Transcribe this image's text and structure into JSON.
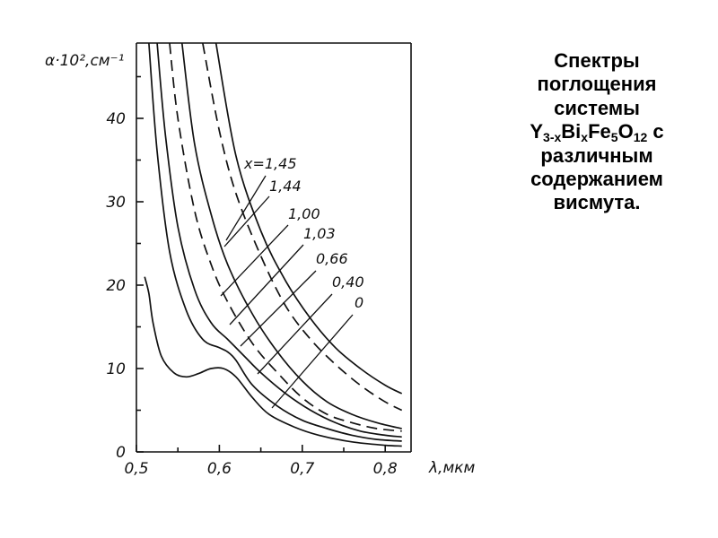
{
  "caption": {
    "line1": "Спектры",
    "line2": "поглощения",
    "line3": "системы",
    "formula": {
      "y": "Y",
      "y_sub": "3-x",
      "bi": "Bi",
      "bi_sub": "x",
      "fe": "Fe",
      "fe_sub": "5",
      "o": "O",
      "o_sub": "12",
      "tail": " с"
    },
    "line5": "различным",
    "line6": "содержанием",
    "line7": "висмута."
  },
  "chart_data": {
    "type": "line",
    "xlabel": "λ,мкм",
    "ylabel": "α·10²,см⁻¹",
    "xlim": [
      0.5,
      0.82
    ],
    "ylim": [
      0,
      49
    ],
    "x_ticks": [
      0.5,
      0.6,
      0.7,
      0.8
    ],
    "x_tick_labels": [
      "0,5",
      "0,6",
      "0,7",
      "0,8"
    ],
    "y_ticks": [
      0,
      10,
      20,
      30,
      40
    ],
    "y_tick_labels": [
      "0",
      "10",
      "20",
      "30",
      "40"
    ],
    "grid": false,
    "series": [
      {
        "name": "x=1,45",
        "style": "solid",
        "x": [
          0.596,
          0.62,
          0.65,
          0.68,
          0.71,
          0.74,
          0.77,
          0.8,
          0.82
        ],
        "y": [
          49,
          35.5,
          26.5,
          20.5,
          16,
          12.5,
          10,
          8,
          7
        ]
      },
      {
        "name": "1,44",
        "style": "dashed",
        "x": [
          0.58,
          0.6,
          0.62,
          0.65,
          0.68,
          0.71,
          0.74,
          0.77,
          0.8,
          0.82
        ],
        "y": [
          49,
          38.5,
          31,
          23.5,
          17.5,
          13.5,
          10.5,
          8,
          6,
          5
        ]
      },
      {
        "name": "1,00",
        "style": "solid",
        "x": [
          0.555,
          0.57,
          0.59,
          0.61,
          0.64,
          0.67,
          0.7,
          0.73,
          0.76,
          0.79,
          0.82
        ],
        "y": [
          49,
          37,
          28.5,
          22.5,
          16.5,
          12,
          8.5,
          6,
          4.5,
          3.5,
          2.8
        ]
      },
      {
        "name": "1,03",
        "style": "dashed",
        "x": [
          0.54,
          0.55,
          0.57,
          0.59,
          0.61,
          0.64,
          0.67,
          0.7,
          0.73,
          0.76,
          0.79,
          0.82
        ],
        "y": [
          49,
          40,
          29,
          22.5,
          18,
          13,
          9.5,
          6.5,
          4.5,
          3.5,
          2.8,
          2.5
        ]
      },
      {
        "name": "0,66",
        "style": "solid",
        "x": [
          0.525,
          0.535,
          0.55,
          0.57,
          0.59,
          0.61,
          0.63,
          0.65,
          0.68,
          0.71,
          0.74,
          0.77,
          0.8,
          0.82
        ],
        "y": [
          49,
          38,
          27,
          19.5,
          15.5,
          13.5,
          11.5,
          9.5,
          7,
          5,
          3.5,
          2.5,
          2,
          1.8
        ]
      },
      {
        "name": "0,40",
        "style": "solid",
        "x": [
          0.515,
          0.525,
          0.54,
          0.56,
          0.58,
          0.6,
          0.61,
          0.62,
          0.64,
          0.67,
          0.7,
          0.73,
          0.76,
          0.79,
          0.82
        ],
        "y": [
          49,
          36,
          24,
          17,
          13.5,
          12.5,
          12,
          11,
          8,
          5.5,
          3.8,
          2.8,
          2,
          1.5,
          1.3
        ]
      },
      {
        "name": "0",
        "style": "solid",
        "x": [
          0.51,
          0.515,
          0.52,
          0.53,
          0.545,
          0.56,
          0.575,
          0.59,
          0.605,
          0.62,
          0.64,
          0.66,
          0.69,
          0.72,
          0.76,
          0.8,
          0.82
        ],
        "y": [
          21,
          19,
          15.5,
          11.5,
          9.5,
          9,
          9.4,
          10,
          10,
          9,
          6.5,
          4.5,
          3,
          2,
          1.2,
          0.8,
          0.7
        ]
      }
    ],
    "series_labels": [
      "x=1,45",
      "1,44",
      "1,00",
      "1,03",
      "0,66",
      "0,40",
      "0"
    ]
  }
}
